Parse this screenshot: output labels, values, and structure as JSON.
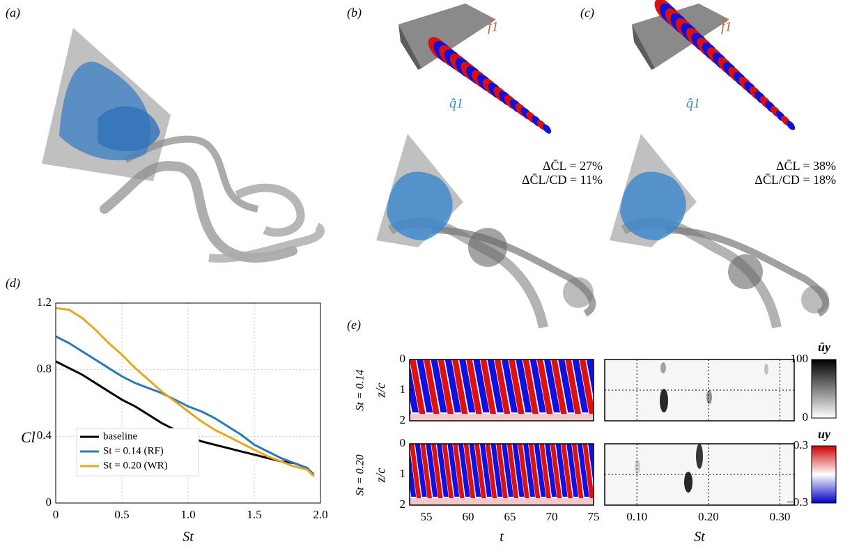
{
  "panel_labels": [
    "(a)",
    "(b)",
    "(c)",
    "(d)",
    "(e)"
  ],
  "annotations": {
    "b": {
      "f_hat": "f̂1",
      "q_hat": "q̂1",
      "delta_cl": "ΔC̄L = 27%",
      "delta_ld": "ΔC̄L/CD = 11%"
    },
    "c": {
      "f_hat": "f̂1",
      "q_hat": "q̂1",
      "delta_cl": "ΔC̄L = 38%",
      "delta_ld": "ΔC̄L/CD = 18%"
    }
  },
  "chart_data": [
    {
      "type": "line",
      "xlabel": "St",
      "ylabel": "Cl",
      "x": [
        0,
        0.1,
        0.2,
        0.3,
        0.4,
        0.5,
        0.6,
        0.7,
        0.8,
        0.9,
        1.0,
        1.1,
        1.2,
        1.3,
        1.4,
        1.5,
        1.6,
        1.7,
        1.8,
        1.9,
        1.95
      ],
      "series": [
        {
          "name": "baseline",
          "color": "#000000",
          "values": [
            0.85,
            0.81,
            0.77,
            0.72,
            0.67,
            0.62,
            0.58,
            0.53,
            0.48,
            0.44,
            0.4,
            0.37,
            0.35,
            0.33,
            0.31,
            0.29,
            0.27,
            0.25,
            0.24,
            0.21,
            0.17
          ]
        },
        {
          "name": "St = 0.14 (RF)",
          "color": "#2a7ab9",
          "values": [
            1.0,
            0.96,
            0.91,
            0.86,
            0.81,
            0.76,
            0.72,
            0.69,
            0.66,
            0.62,
            0.58,
            0.55,
            0.51,
            0.46,
            0.41,
            0.35,
            0.31,
            0.27,
            0.24,
            0.21,
            0.17
          ]
        },
        {
          "name": "St = 0.20 (WR)",
          "color": "#e6a820",
          "values": [
            1.17,
            1.16,
            1.11,
            1.04,
            0.96,
            0.89,
            0.81,
            0.74,
            0.67,
            0.61,
            0.55,
            0.49,
            0.44,
            0.4,
            0.36,
            0.32,
            0.28,
            0.25,
            0.22,
            0.2,
            0.16
          ]
        }
      ],
      "xlim": [
        0,
        2
      ],
      "xticks": [
        0,
        0.5,
        {
          "value": 1,
          "label": "1.0"
        },
        1.5,
        {
          "value": 2,
          "label": "2.0"
        }
      ],
      "ylim": [
        0,
        1.2
      ],
      "yticks": [
        0,
        0.4,
        0.8,
        1.2
      ],
      "grid": true,
      "legend": "lower left"
    },
    {
      "type": "heatmap",
      "xlabel": "t",
      "ylabel": "z/c",
      "rows": [
        "St = 0.14",
        "St = 0.20"
      ],
      "xlim": [
        53,
        75
      ],
      "xticks": [
        55,
        60,
        65,
        70,
        75
      ],
      "ylim": [
        0,
        2
      ],
      "yticks": [
        0,
        1,
        2
      ],
      "y_inverted": true,
      "colorbar": {
        "label": "uy",
        "lim": [
          -0.3,
          0.3
        ],
        "ticks": [
          {
            "value": -0.3,
            "label": "−0.3"
          },
          0.3
        ]
      }
    },
    {
      "type": "heatmap",
      "xlabel": "St",
      "xlim": [
        0.055,
        0.32
      ],
      "xticks": [
        {
          "value": 0.1,
          "label": "0.10"
        },
        {
          "value": 0.2,
          "label": "0.20"
        },
        {
          "value": 0.3,
          "label": "0.30"
        }
      ],
      "ylim": [
        0,
        2
      ],
      "hline": 1,
      "y_inverted": true,
      "grid": true,
      "colorbar": {
        "label": "ûy",
        "lim": [
          0,
          100
        ],
        "ticks": [
          0,
          100
        ]
      }
    }
  ]
}
